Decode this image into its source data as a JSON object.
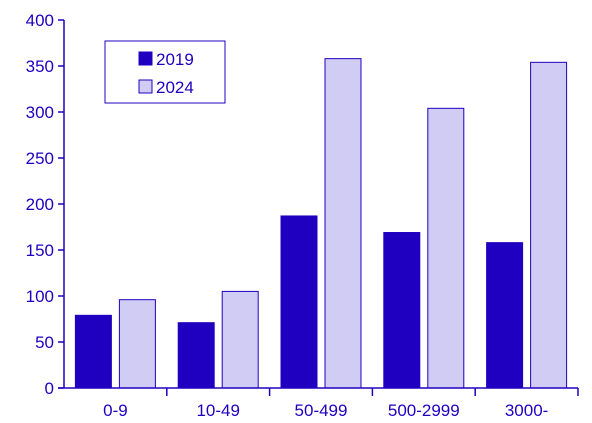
{
  "chart_data": {
    "type": "bar",
    "categories": [
      "0-9",
      "10-49",
      "50-499",
      "500-2999",
      "3000-"
    ],
    "series": [
      {
        "name": "2019",
        "values": [
          79,
          71,
          187,
          169,
          158
        ],
        "color": "#2000c0"
      },
      {
        "name": "2024",
        "values": [
          96,
          105,
          358,
          304,
          354
        ],
        "color": "#d0ccf4"
      }
    ],
    "yticks": [
      0,
      50,
      100,
      150,
      200,
      250,
      300,
      350,
      400
    ],
    "ylim": [
      0,
      400
    ],
    "title": "",
    "xlabel": "",
    "ylabel": "",
    "grid": false,
    "legend_position": "top-left",
    "axis_color": "#2000c0",
    "text_color": "#2000c0",
    "bar_outline_color": "#2000c0"
  }
}
